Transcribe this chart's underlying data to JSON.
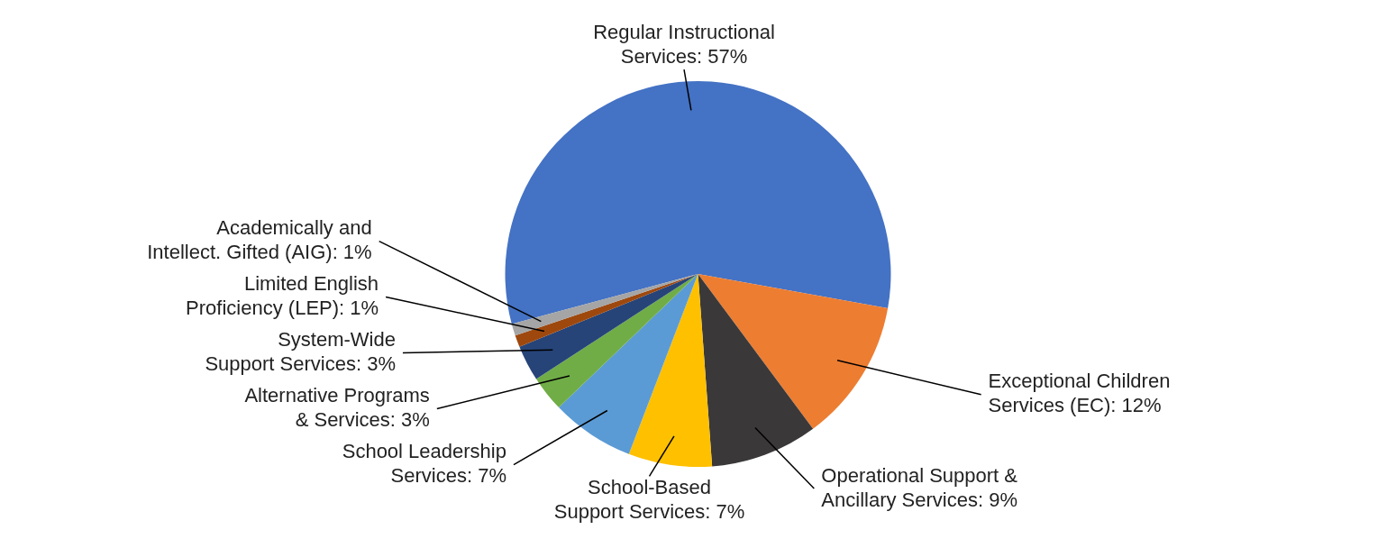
{
  "chart_data": {
    "type": "pie",
    "categories": [
      "Regular Instructional Services",
      "Exceptional Children Services (EC)",
      "Operational Support & Ancillary Services",
      "School-Based Support Services",
      "School Leadership Services",
      "Alternative Programs & Services",
      "System-Wide Support Services",
      "Limited English Proficiency (LEP)",
      "Academically and Intellect. Gifted (AIG)"
    ],
    "values": [
      57,
      12,
      9,
      7,
      7,
      3,
      3,
      1,
      1
    ],
    "colors": [
      "#4472c4",
      "#ed7d31",
      "#3a3838",
      "#ffc000",
      "#5b9bd5",
      "#70ad47",
      "#264478",
      "#9e480e",
      "#a5a5a5"
    ],
    "value_labels": [
      "57%",
      "12%",
      "9%",
      "7%",
      "7%",
      "3%",
      "3%",
      "1%",
      "1%"
    ]
  }
}
